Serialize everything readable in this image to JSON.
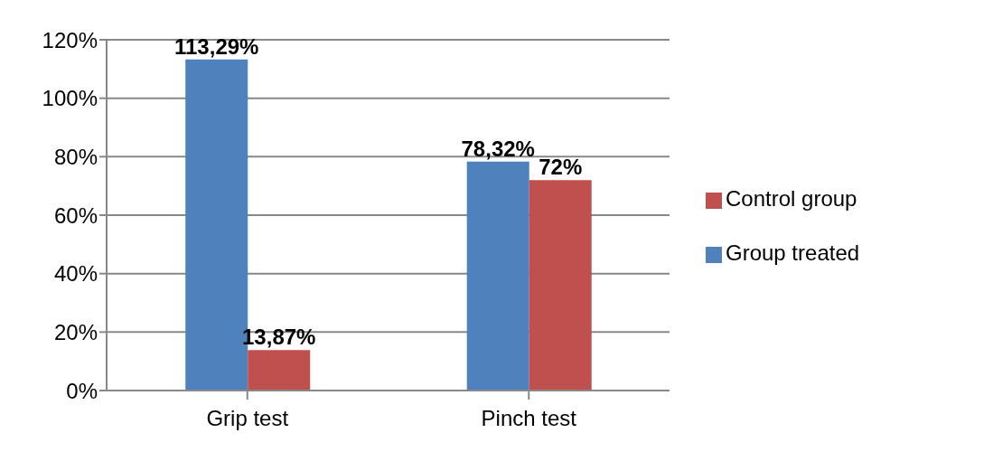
{
  "chart_data": {
    "type": "bar",
    "categories": [
      "Grip test",
      "Pinch test"
    ],
    "series": [
      {
        "name": "Group treated",
        "color": "#4f81bd",
        "values": [
          113.29,
          78.32
        ],
        "value_labels": [
          "113,29%",
          "78,32%"
        ]
      },
      {
        "name": "Control group",
        "color": "#c0504d",
        "values": [
          13.87,
          72
        ],
        "value_labels": [
          "13,87%",
          "72%"
        ]
      }
    ],
    "ylim": [
      0,
      120
    ],
    "yticks": [
      {
        "value": 0,
        "label": "0%"
      },
      {
        "value": 20,
        "label": "20%"
      },
      {
        "value": 40,
        "label": "40%"
      },
      {
        "value": 60,
        "label": "60%"
      },
      {
        "value": 80,
        "label": "80%"
      },
      {
        "value": 100,
        "label": "100%"
      },
      {
        "value": 120,
        "label": "120%"
      }
    ],
    "grid": "y",
    "legend": "right"
  }
}
